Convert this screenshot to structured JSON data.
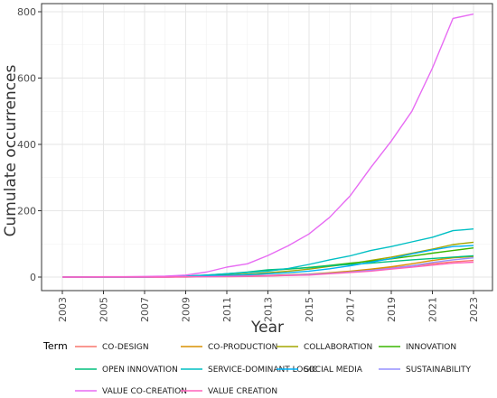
{
  "chart_data": {
    "type": "line",
    "title": "",
    "xlabel": "Year",
    "ylabel": "Cumulate occurrences",
    "xlim": [
      2003,
      2023
    ],
    "ylim": [
      0,
      800
    ],
    "grid": true,
    "legend_title": "Term",
    "legend_position": "bottom",
    "x": [
      2003,
      2004,
      2005,
      2006,
      2007,
      2008,
      2009,
      2010,
      2011,
      2012,
      2013,
      2014,
      2015,
      2016,
      2017,
      2018,
      2019,
      2020,
      2021,
      2022,
      2023
    ],
    "x_ticks": [
      "2003",
      "2005",
      "2007",
      "2009",
      "2011",
      "2013",
      "2015",
      "2017",
      "2019",
      "2021",
      "2023"
    ],
    "y_ticks": [
      "0",
      "200",
      "400",
      "600",
      "800"
    ],
    "series": [
      {
        "name": "CO-DESIGN",
        "color": "#F8766D",
        "values": [
          0,
          0,
          0,
          0,
          0,
          0,
          0,
          1,
          1,
          2,
          3,
          5,
          7,
          12,
          17,
          22,
          28,
          34,
          40,
          46,
          50
        ]
      },
      {
        "name": "CO-PRODUCTION",
        "color": "#D89000",
        "values": [
          0,
          0,
          0,
          0,
          0,
          0,
          1,
          2,
          3,
          4,
          5,
          7,
          9,
          13,
          18,
          24,
          31,
          40,
          50,
          58,
          62
        ]
      },
      {
        "name": "COLLABORATION",
        "color": "#A3A500",
        "values": [
          0,
          0,
          0,
          0,
          0,
          1,
          2,
          4,
          6,
          9,
          13,
          18,
          24,
          32,
          40,
          50,
          60,
          72,
          84,
          98,
          105
        ]
      },
      {
        "name": "INNOVATION",
        "color": "#39B600",
        "values": [
          0,
          0,
          0,
          0,
          0,
          1,
          3,
          5,
          9,
          14,
          20,
          24,
          29,
          35,
          42,
          48,
          55,
          63,
          72,
          80,
          88
        ]
      },
      {
        "name": "OPEN INNOVATION",
        "color": "#00BF7D",
        "values": [
          0,
          0,
          0,
          0,
          0,
          1,
          3,
          6,
          10,
          15,
          22,
          25,
          28,
          34,
          38,
          42,
          47,
          52,
          56,
          60,
          64
        ]
      },
      {
        "name": "SERVICE-DOMINANT LOGIC",
        "color": "#00BFC4",
        "values": [
          0,
          0,
          0,
          0,
          0,
          1,
          3,
          6,
          10,
          14,
          18,
          26,
          38,
          52,
          64,
          80,
          92,
          106,
          120,
          140,
          145
        ]
      },
      {
        "name": "SOCIAL MEDIA",
        "color": "#00B0F6",
        "values": [
          0,
          0,
          0,
          0,
          0,
          1,
          2,
          3,
          5,
          7,
          10,
          13,
          18,
          25,
          34,
          45,
          56,
          70,
          82,
          92,
          95
        ]
      },
      {
        "name": "SUSTAINABILITY",
        "color": "#9590FF",
        "values": [
          0,
          0,
          0,
          0,
          0,
          0,
          1,
          1,
          2,
          3,
          4,
          6,
          8,
          11,
          15,
          20,
          26,
          34,
          44,
          52,
          58
        ]
      },
      {
        "name": "VALUE CO-CREATION",
        "color": "#E76BF3",
        "values": [
          0,
          0,
          1,
          1,
          2,
          3,
          6,
          15,
          30,
          40,
          65,
          95,
          130,
          180,
          245,
          330,
          410,
          500,
          630,
          780,
          793
        ]
      },
      {
        "name": "VALUE CREATION",
        "color": "#FF62BC",
        "values": [
          0,
          0,
          0,
          0,
          0,
          0,
          1,
          1,
          2,
          3,
          4,
          5,
          6,
          10,
          14,
          18,
          24,
          30,
          36,
          42,
          45
        ]
      }
    ]
  }
}
